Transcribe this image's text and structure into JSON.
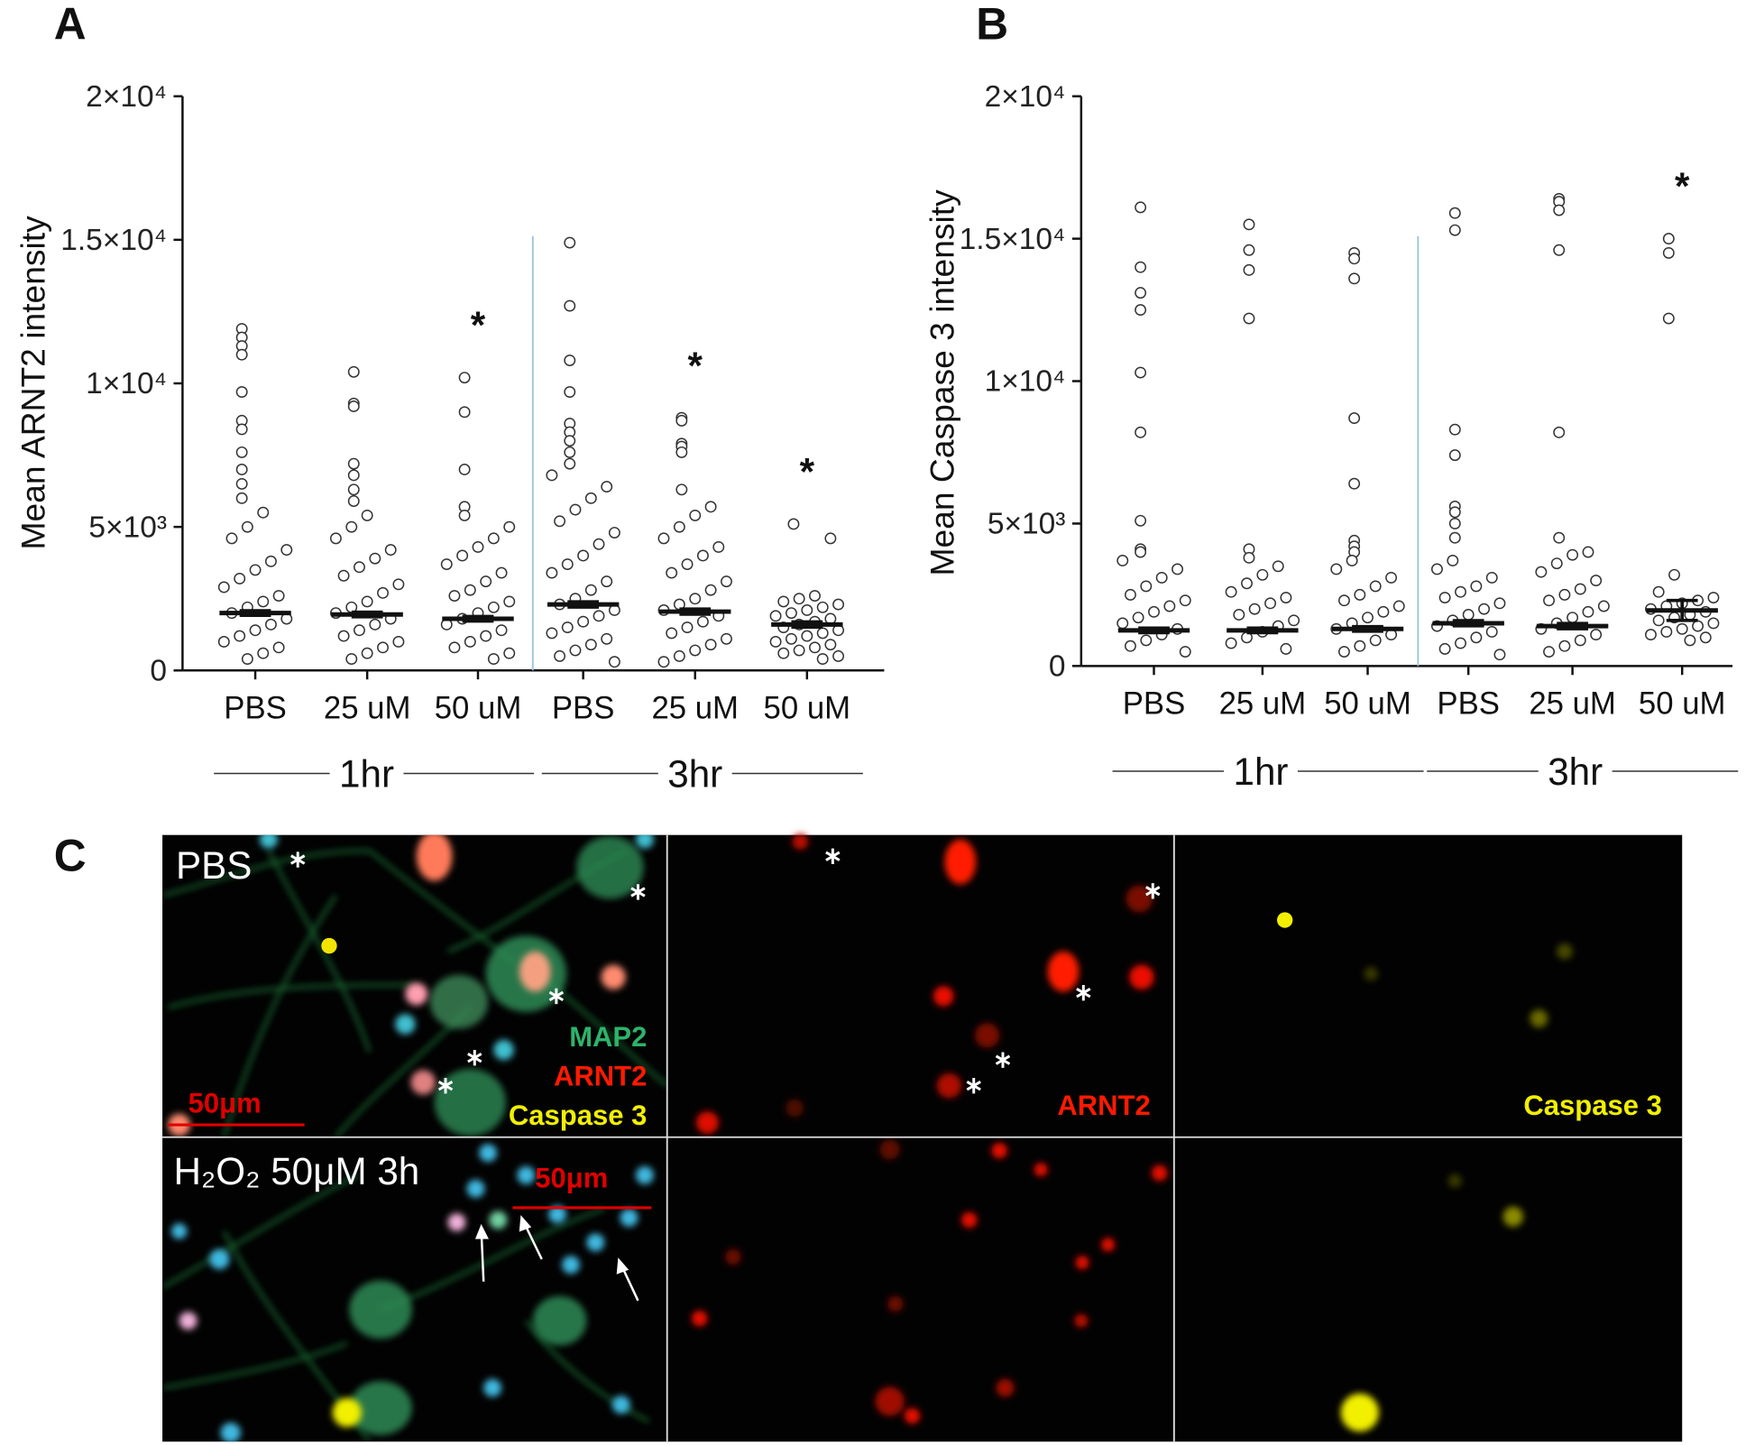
{
  "chart_data": [
    {
      "type": "strip",
      "panel": "A",
      "y_label": "Mean ARNT2 intensity",
      "categories": [
        "PBS",
        "25 uM",
        "50 uM",
        "PBS",
        "25 uM",
        "50 uM"
      ],
      "group_labels": [
        "1hr",
        "3hr"
      ],
      "ylim": [
        0,
        20000
      ],
      "yticks": [
        0,
        {
          "value": 5000,
          "label": "5×10³"
        },
        {
          "value": 10000,
          "label": "1×10⁴"
        },
        {
          "value": 15000,
          "label": "1.5×10⁴"
        },
        {
          "value": 20000,
          "label": "2×10⁴"
        }
      ],
      "values": [
        [
          11900,
          11600,
          11300,
          11000,
          9700,
          8700,
          8400,
          7600,
          7000,
          6500,
          6000,
          5500,
          5000,
          4600,
          4200,
          3800,
          3500,
          3200,
          2900,
          2600,
          2400,
          2200,
          2000,
          1800,
          1600,
          1400,
          1200,
          1000,
          800,
          600,
          400
        ],
        [
          10400,
          9300,
          9200,
          7200,
          6800,
          6300,
          5900,
          5400,
          5000,
          4600,
          4200,
          3900,
          3600,
          3300,
          3000,
          2700,
          2400,
          2200,
          2000,
          1800,
          1600,
          1400,
          1200,
          1000,
          800,
          600,
          400
        ],
        [
          10200,
          9000,
          7000,
          5700,
          5400,
          5000,
          4600,
          4300,
          4000,
          3700,
          3400,
          3100,
          2800,
          2600,
          2400,
          2200,
          2000,
          1800,
          1600,
          1400,
          1200,
          1000,
          800,
          600,
          400
        ],
        [
          14900,
          12700,
          10800,
          9700,
          8600,
          8300,
          8000,
          7600,
          7200,
          6800,
          6400,
          6000,
          5600,
          5200,
          4800,
          4400,
          4000,
          3700,
          3400,
          3100,
          2800,
          2500,
          2300,
          2100,
          1900,
          1700,
          1500,
          1300,
          1100,
          900,
          700,
          500,
          300
        ],
        [
          8800,
          8700,
          7900,
          7800,
          7600,
          6300,
          5700,
          5400,
          5000,
          4600,
          4300,
          4000,
          3700,
          3400,
          3100,
          2800,
          2500,
          2300,
          2100,
          1900,
          1700,
          1500,
          1300,
          1100,
          900,
          700,
          500,
          300
        ],
        [
          5100,
          4600,
          2600,
          2500,
          2400,
          2300,
          2200,
          2100,
          2000,
          1900,
          1800,
          1700,
          1600,
          1500,
          1400,
          1300,
          1200,
          1100,
          1000,
          900,
          800,
          700,
          600,
          500,
          400
        ]
      ],
      "means": [
        2000,
        1950,
        1800,
        2300,
        2050,
        1600
      ],
      "errors": [
        80,
        80,
        80,
        90,
        90,
        90
      ],
      "significance": [
        null,
        null,
        "*",
        null,
        "*",
        "*"
      ]
    },
    {
      "type": "strip",
      "panel": "B",
      "y_label": "Mean Caspase 3 intensity",
      "categories": [
        "PBS",
        "25 uM",
        "50 uM",
        "PBS",
        "25 uM",
        "50 uM"
      ],
      "group_labels": [
        "1hr",
        "3hr"
      ],
      "ylim": [
        0,
        20000
      ],
      "yticks": [
        0,
        {
          "value": 5000,
          "label": "5×10³"
        },
        {
          "value": 10000,
          "label": "1×10⁴"
        },
        {
          "value": 15000,
          "label": "1.5×10⁴"
        },
        {
          "value": 20000,
          "label": "2×10⁴"
        }
      ],
      "values": [
        [
          16100,
          14000,
          13100,
          12500,
          10300,
          8200,
          5100,
          4100,
          4000,
          3700,
          3400,
          3100,
          2800,
          2500,
          2300,
          2100,
          1900,
          1700,
          1500,
          1300,
          1100,
          900,
          700,
          500
        ],
        [
          15500,
          14600,
          13900,
          12200,
          4100,
          3800,
          3500,
          3200,
          2900,
          2600,
          2400,
          2200,
          2000,
          1800,
          1600,
          1400,
          1200,
          1000,
          800,
          600
        ],
        [
          14500,
          14300,
          13600,
          8700,
          6400,
          4400,
          4200,
          4000,
          3700,
          3400,
          3100,
          2800,
          2500,
          2300,
          2100,
          1900,
          1700,
          1500,
          1300,
          1100,
          900,
          700,
          500
        ],
        [
          15900,
          15300,
          8300,
          7400,
          5600,
          5400,
          5000,
          4500,
          3700,
          3400,
          3100,
          2800,
          2600,
          2400,
          2200,
          2000,
          1800,
          1600,
          1400,
          1200,
          1000,
          800,
          600,
          400
        ],
        [
          16400,
          16300,
          16000,
          14600,
          8200,
          4500,
          4000,
          3900,
          3600,
          3300,
          3000,
          2700,
          2500,
          2300,
          2100,
          1900,
          1700,
          1500,
          1300,
          1100,
          900,
          700,
          500
        ],
        [
          15000,
          14500,
          12200,
          3200,
          2600,
          2400,
          2300,
          2200,
          2100,
          2000,
          1900,
          1800,
          1700,
          1600,
          1500,
          1400,
          1300,
          1200,
          1100,
          1000,
          900
        ]
      ],
      "means": [
        1250,
        1250,
        1300,
        1500,
        1400,
        1950
      ],
      "errors": [
        80,
        80,
        80,
        90,
        90,
        350
      ],
      "significance": [
        null,
        null,
        null,
        null,
        null,
        "*"
      ]
    }
  ],
  "panel_c": {
    "label": "C",
    "top_row": {
      "label": "PBS",
      "stains": [
        "MAP2",
        "ARNT2",
        "Caspase 3"
      ],
      "scale_bar": "50μm",
      "middle_label": "ARNT2",
      "right_label": "Caspase 3"
    },
    "bottom_row": {
      "label": "H₂O₂ 50μM 3h",
      "scale_bar": "50μm"
    }
  }
}
